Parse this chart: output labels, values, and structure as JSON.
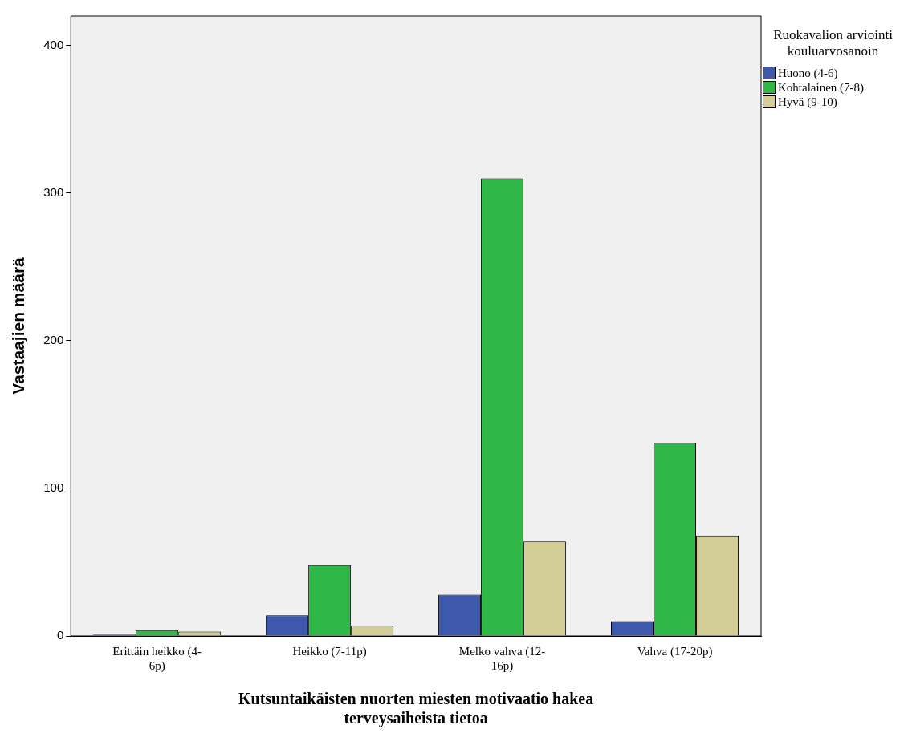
{
  "chart_data": {
    "type": "bar",
    "xlabel": "Kutsuntaikäisten nuorten miesten motivaatio hakea terveysaiheista tietoa",
    "ylabel": "Vastaajien määrä",
    "legend_title": "Ruokavalion arviointi kouluarvosanoin",
    "categories": [
      "Erittäin heikko (4-6p)",
      "Heikko (7-11p)",
      "Melko vahva (12-16p)",
      "Vahva (17-20p)"
    ],
    "series": [
      {
        "name": "Huono (4-6)",
        "color": "#3e58ac",
        "values": [
          1,
          14,
          28,
          10
        ]
      },
      {
        "name": "Kohtalainen (7-8)",
        "color": "#2fb847",
        "values": [
          4,
          48,
          310,
          131
        ]
      },
      {
        "name": "Hyvä (9-10)",
        "color": "#d3ce97",
        "values": [
          3,
          7,
          64,
          68
        ]
      }
    ],
    "ylim": [
      0,
      420
    ],
    "yticks": [
      0,
      100,
      200,
      300,
      400
    ],
    "grid": false,
    "legend": "top right"
  }
}
